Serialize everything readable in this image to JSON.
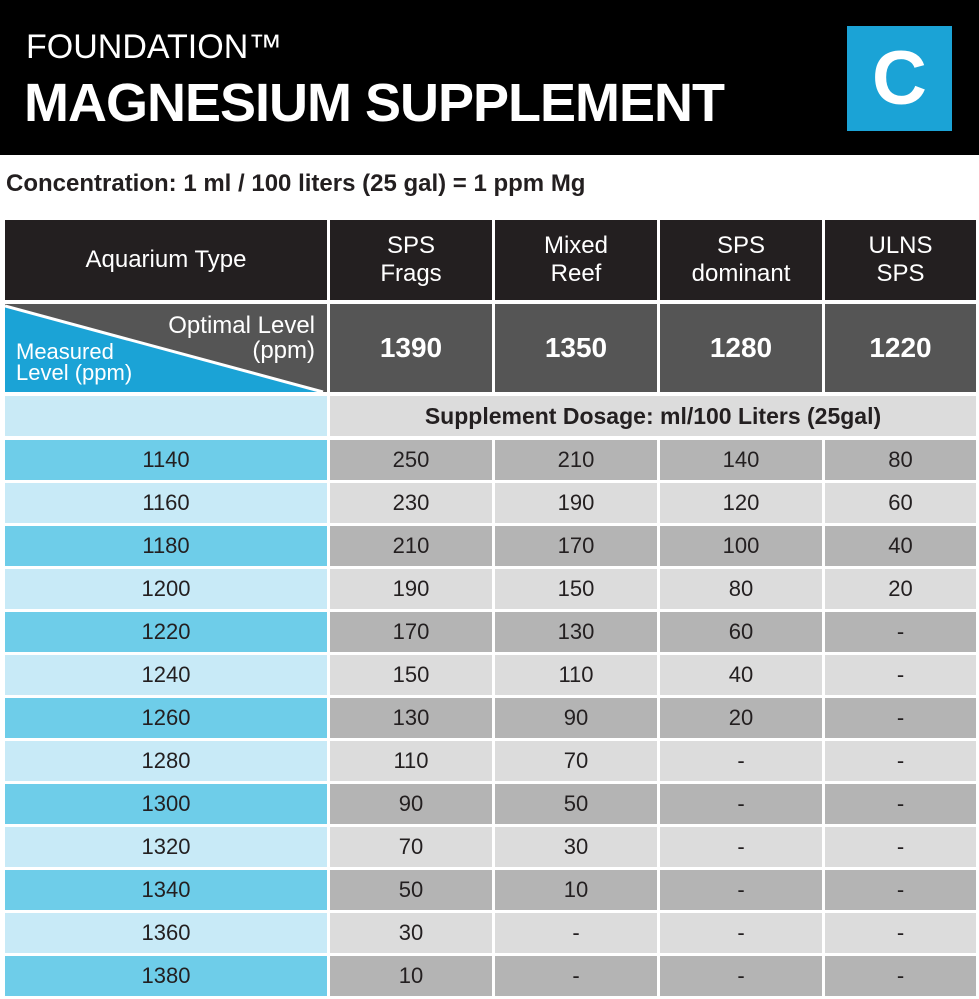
{
  "header": {
    "brand": "FOUNDATION™",
    "title": "MAGNESIUM SUPPLEMENT",
    "badge": "C"
  },
  "concentration": "Concentration: 1 ml / 100 liters (25 gal) = 1 ppm Mg",
  "table": {
    "columns": [
      "Aquarium Type",
      "SPS Frags",
      "Mixed Reef",
      "SPS dominant",
      "ULNS SPS"
    ],
    "optimal_label": "Optimal Level (ppm)",
    "measured_label": "Measured Level (ppm)",
    "optimal": [
      "1390",
      "1350",
      "1280",
      "1220"
    ],
    "dosage_label": "Supplement Dosage: ml/100 Liters (25gal)",
    "rows": [
      [
        "1140",
        "250",
        "210",
        "140",
        "80"
      ],
      [
        "1160",
        "230",
        "190",
        "120",
        "60"
      ],
      [
        "1180",
        "210",
        "170",
        "100",
        "40"
      ],
      [
        "1200",
        "190",
        "150",
        "80",
        "20"
      ],
      [
        "1220",
        "170",
        "130",
        "60",
        "-"
      ],
      [
        "1240",
        "150",
        "110",
        "40",
        "-"
      ],
      [
        "1260",
        "130",
        "90",
        "20",
        "-"
      ],
      [
        "1280",
        "110",
        "70",
        "-",
        "-"
      ],
      [
        "1300",
        "90",
        "50",
        "-",
        "-"
      ],
      [
        "1320",
        "70",
        "30",
        "-",
        "-"
      ],
      [
        "1340",
        "50",
        "10",
        "-",
        "-"
      ],
      [
        "1360",
        "30",
        "-",
        "-",
        "-"
      ],
      [
        "1380",
        "10",
        "-",
        "-",
        "-"
      ]
    ]
  }
}
